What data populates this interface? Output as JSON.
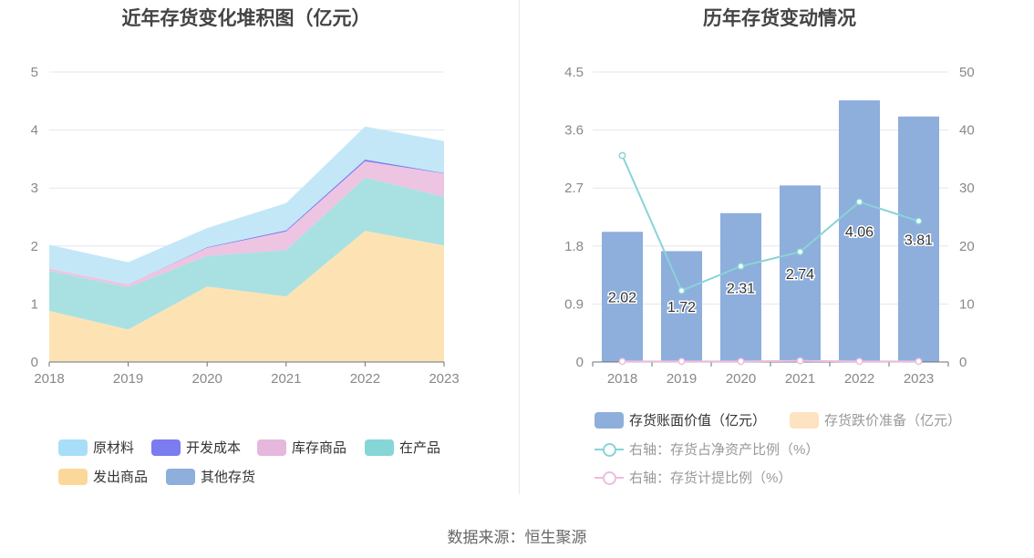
{
  "chart_data": [
    {
      "type": "area",
      "stacked": true,
      "title": "近年存货变化堆积图（亿元）",
      "categories": [
        "2018",
        "2019",
        "2020",
        "2021",
        "2022",
        "2023"
      ],
      "ylim": [
        0,
        5
      ],
      "yticks": [
        "0",
        "1",
        "2",
        "3",
        "4",
        "5"
      ],
      "grid": true,
      "legend_position": "bottom",
      "series": [
        {
          "name": "其他存货",
          "color": "#8eaedc",
          "values": [
            0.01,
            0.01,
            0.01,
            0.01,
            0.01,
            0.01
          ]
        },
        {
          "name": "发出商品",
          "color": "#fde3b4",
          "values": [
            0.87,
            0.55,
            1.29,
            1.12,
            2.25,
            2.0
          ]
        },
        {
          "name": "在产品",
          "color": "#a9e1e2",
          "values": [
            0.69,
            0.73,
            0.53,
            0.8,
            0.92,
            0.84
          ]
        },
        {
          "name": "库存商品",
          "color": "#edc4e2",
          "values": [
            0.04,
            0.05,
            0.14,
            0.32,
            0.28,
            0.4
          ]
        },
        {
          "name": "开发成本",
          "color": "#7b7cf0",
          "values": [
            0.0,
            0.0,
            0.01,
            0.02,
            0.03,
            0.01
          ]
        },
        {
          "name": "原材料",
          "color": "#c4e7f8",
          "values": [
            0.41,
            0.38,
            0.33,
            0.47,
            0.57,
            0.55
          ]
        }
      ],
      "legend_order": [
        "原材料",
        "开发成本",
        "库存商品",
        "在产品",
        "发出商品",
        "其他存货"
      ],
      "legend_colors": {
        "原材料": "#a8def7",
        "开发成本": "#7b7cf0",
        "库存商品": "#e6b8de",
        "在产品": "#86d6d8",
        "发出商品": "#fbd899",
        "其他存货": "#8eaedc"
      }
    },
    {
      "type": "bar",
      "title": "历年存货变动情况",
      "categories": [
        "2018",
        "2019",
        "2020",
        "2021",
        "2022",
        "2023"
      ],
      "ylim": [
        0,
        4.5
      ],
      "yticks": [
        "0",
        "0.9",
        "1.8",
        "2.7",
        "3.6",
        "4.5"
      ],
      "y2lim": [
        0,
        50
      ],
      "y2ticks": [
        "0",
        "10",
        "20",
        "30",
        "40",
        "50"
      ],
      "grid": true,
      "legend_position": "bottom",
      "series": [
        {
          "name": "存货账面价值（亿元）",
          "kind": "bar",
          "axis": "left",
          "color": "#8eaedc",
          "values": [
            2.02,
            1.72,
            2.31,
            2.74,
            4.06,
            3.81
          ],
          "labels": [
            "2.02",
            "1.72",
            "2.31",
            "2.74",
            "4.06",
            "3.81"
          ]
        },
        {
          "name": "存货跌价准备（亿元）",
          "kind": "bar",
          "axis": "left",
          "color": "#fde3c0",
          "values": [
            0,
            0,
            0,
            0,
            0,
            0
          ]
        },
        {
          "name": "右轴：存货占净资产比例（%）",
          "kind": "line",
          "axis": "right",
          "color": "#88d4d7",
          "values": [
            35.6,
            12.3,
            16.5,
            19.0,
            27.6,
            24.3
          ]
        },
        {
          "name": "右轴：存货计提比例（%）",
          "kind": "line",
          "axis": "right",
          "color": "#ebbde0",
          "values": [
            0.1,
            0.1,
            0.1,
            0.2,
            0.1,
            0.1
          ]
        }
      ]
    }
  ],
  "footer": {
    "source": "数据来源：恒生聚源"
  }
}
